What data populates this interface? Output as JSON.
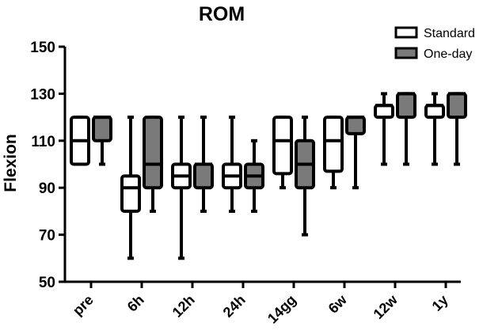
{
  "chart_data": {
    "type": "boxplot",
    "title": "ROM",
    "xlabel": "",
    "ylabel": "Flexion",
    "ylim": [
      50,
      150
    ],
    "yticks": [
      50,
      70,
      90,
      110,
      130,
      150
    ],
    "categories": [
      "pre",
      "6h",
      "12h",
      "24h",
      "14gg",
      "6w",
      "12w",
      "1y"
    ],
    "legend_position": "top-right",
    "grid": false,
    "series": [
      {
        "name": "Standard",
        "color": "#ffffff",
        "boxes": [
          {
            "min": 100,
            "q1": 100,
            "median": 110,
            "q3": 120,
            "max": 120
          },
          {
            "min": 60,
            "q1": 80,
            "median": 90,
            "q3": 95,
            "max": 120
          },
          {
            "min": 60,
            "q1": 90,
            "median": 95,
            "q3": 100,
            "max": 120
          },
          {
            "min": 80,
            "q1": 90,
            "median": 95,
            "q3": 100,
            "max": 120
          },
          {
            "min": 90,
            "q1": 96,
            "median": 110,
            "q3": 120,
            "max": 120
          },
          {
            "min": 90,
            "q1": 97,
            "median": 110,
            "q3": 120,
            "max": 120
          },
          {
            "min": 100,
            "q1": 120,
            "median": 125,
            "q3": 125,
            "max": 130
          },
          {
            "min": 100,
            "q1": 120,
            "median": 125,
            "q3": 125,
            "max": 130
          }
        ]
      },
      {
        "name": "One-day",
        "color": "#7a7a7a",
        "boxes": [
          {
            "min": 100,
            "q1": 110,
            "median": 120,
            "q3": 120,
            "max": 120
          },
          {
            "min": 80,
            "q1": 90,
            "median": 100,
            "q3": 120,
            "max": 120
          },
          {
            "min": 80,
            "q1": 90,
            "median": 100,
            "q3": 100,
            "max": 120
          },
          {
            "min": 80,
            "q1": 90,
            "median": 95,
            "q3": 100,
            "max": 110
          },
          {
            "min": 70,
            "q1": 90,
            "median": 100,
            "q3": 110,
            "max": 120
          },
          {
            "min": 90,
            "q1": 113,
            "median": 120,
            "q3": 120,
            "max": 120
          },
          {
            "min": 100,
            "q1": 120,
            "median": 130,
            "q3": 130,
            "max": 130
          },
          {
            "min": 100,
            "q1": 120,
            "median": 130,
            "q3": 130,
            "max": 130
          }
        ]
      }
    ]
  }
}
